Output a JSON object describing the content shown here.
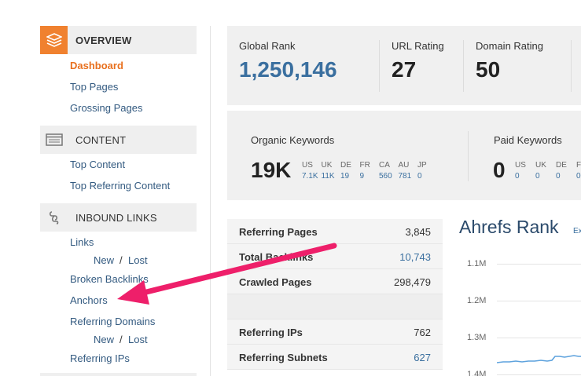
{
  "sidebar": {
    "overview": {
      "title": "OVERVIEW",
      "items": [
        "Dashboard",
        "Top Pages",
        "Grossing Pages"
      ]
    },
    "content": {
      "title": "CONTENT",
      "items": [
        "Top Content",
        "Top Referring Content"
      ]
    },
    "inbound": {
      "title": "INBOUND LINKS",
      "links": "Links",
      "links_new": "New",
      "links_sep": "/",
      "links_lost": "Lost",
      "broken": "Broken Backlinks",
      "anchors": "Anchors",
      "ref_domains": "Referring Domains",
      "rd_new": "New",
      "rd_sep": "/",
      "rd_lost": "Lost",
      "ref_ips": "Referring IPs"
    }
  },
  "stats": {
    "global_rank_label": "Global Rank",
    "global_rank_value": "1,250,146",
    "url_rating_label": "URL Rating",
    "url_rating_value": "27",
    "domain_rating_label": "Domain Rating",
    "domain_rating_value": "50"
  },
  "organic": {
    "label": "Organic Keywords",
    "value": "19K",
    "countries": [
      {
        "code": "US",
        "val": "7.1K"
      },
      {
        "code": "UK",
        "val": "11K"
      },
      {
        "code": "DE",
        "val": "19"
      },
      {
        "code": "FR",
        "val": "9"
      },
      {
        "code": "CA",
        "val": "560"
      },
      {
        "code": "AU",
        "val": "781"
      },
      {
        "code": "JP",
        "val": "0"
      }
    ]
  },
  "paid": {
    "label": "Paid Keywords",
    "value": "0",
    "countries": [
      {
        "code": "US",
        "val": "0"
      },
      {
        "code": "UK",
        "val": "0"
      },
      {
        "code": "DE",
        "val": "0"
      },
      {
        "code": "FI",
        "val": "0"
      }
    ]
  },
  "table": [
    {
      "label": "Referring Pages",
      "value": "3,845",
      "link": false
    },
    {
      "label": "Total Backlinks",
      "value": "10,743",
      "link": true
    },
    {
      "label": "Crawled Pages",
      "value": "298,479",
      "link": false
    },
    {
      "label": "",
      "value": "",
      "link": false
    },
    {
      "label": "Referring IPs",
      "value": "762",
      "link": false
    },
    {
      "label": "Referring Subnets",
      "value": "627",
      "link": true
    }
  ],
  "chart": {
    "title": "Ahrefs Rank",
    "sub": "Ex",
    "yticks": [
      "1.1M",
      "1.2M",
      "1.3M",
      "1.4M"
    ]
  },
  "colors": {
    "accent": "#f0812f",
    "link": "#3a6f9f",
    "arrow": "#ee1f6a"
  }
}
